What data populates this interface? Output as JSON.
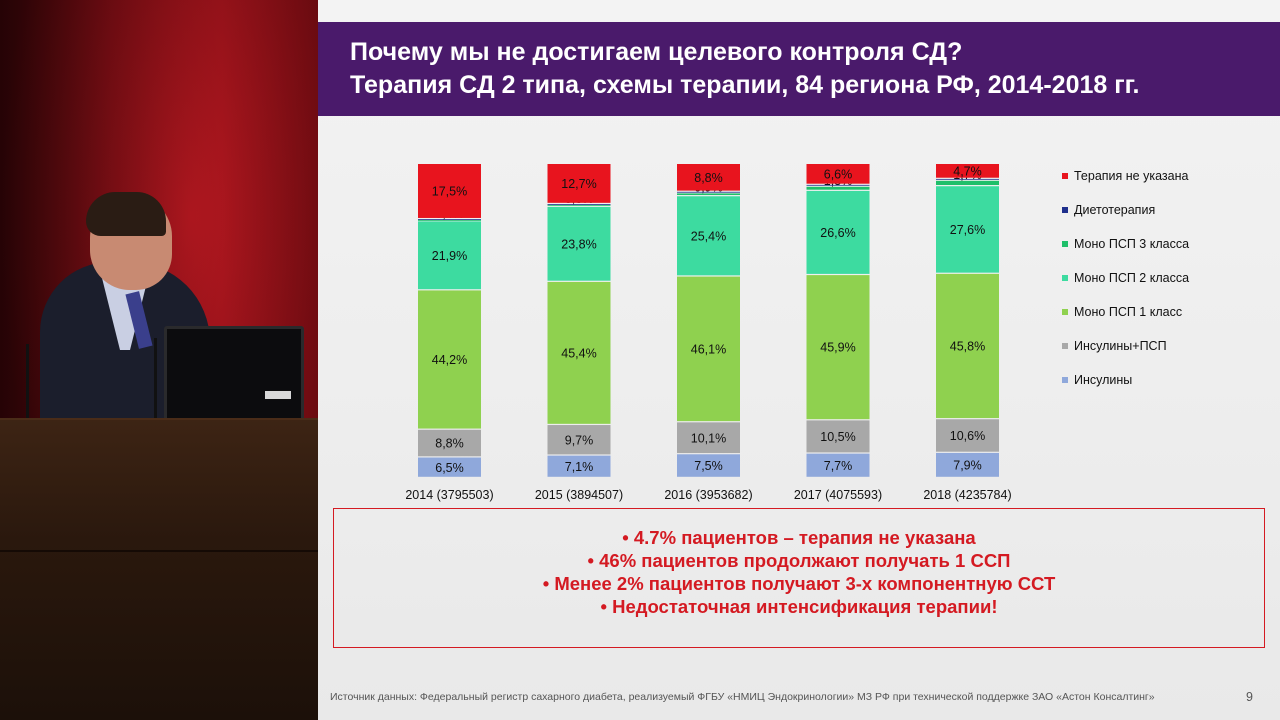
{
  "title": {
    "line1": "Почему мы не достигаем целевого контроля СД?",
    "line2": "Терапия СД 2 типа, схемы терапии, 84 региона РФ, 2014-2018 гг."
  },
  "chart_data": {
    "type": "bar",
    "stacked": true,
    "normalized_percent": true,
    "categories": [
      "2014 (3795503)",
      "2015 (3894507)",
      "2016 (3953682)",
      "2017 (4075593)",
      "2018 (4235784)"
    ],
    "series": [
      {
        "name": "Инсулины",
        "color": "#8fa8db",
        "values": [
          6.5,
          7.1,
          7.5,
          7.7,
          7.9
        ],
        "labels": [
          "6,5%",
          "7,1%",
          "7,5%",
          "7,7%",
          "7,9%"
        ]
      },
      {
        "name": "Инсулины+ПСП",
        "color": "#a8a8a8",
        "values": [
          8.8,
          9.7,
          10.1,
          10.5,
          10.6
        ],
        "labels": [
          "8,8%",
          "9,7%",
          "10,1%",
          "10,5%",
          "10,6%"
        ]
      },
      {
        "name": "Моно ПСП 1 класс",
        "color": "#8fd14f",
        "values": [
          44.2,
          45.4,
          46.1,
          45.9,
          45.8
        ],
        "labels": [
          "44,2%",
          "45,4%",
          "46,1%",
          "45,9%",
          "45,8%"
        ]
      },
      {
        "name": "Моно ПСП 2 класса",
        "color": "#3ddba0",
        "values": [
          21.9,
          23.8,
          25.4,
          26.6,
          27.6
        ],
        "labels": [
          "21,9%",
          "23,8%",
          "25,4%",
          "26,6%",
          "27,6%"
        ]
      },
      {
        "name": "Моно ПСП 3 класса",
        "color": "#1fbf6a",
        "values": [
          0.4,
          0.6,
          0.9,
          1.3,
          1.7
        ],
        "labels": [
          "0,4%",
          "0,6%",
          "0,9%",
          "1,3%",
          "1,7%"
        ]
      },
      {
        "name": "Диетотерапия",
        "color": "#1f2f8c",
        "values": [
          0.3,
          0.3,
          0.5,
          0.6,
          0.6
        ],
        "labels": [
          "",
          "",
          "",
          "",
          ""
        ]
      },
      {
        "name": "Терапия не указана",
        "color": "#e8141e",
        "values": [
          17.5,
          12.7,
          8.8,
          6.6,
          4.7
        ],
        "labels": [
          "17,5%",
          "12,7%",
          "8,8%",
          "6,6%",
          "4,7%"
        ]
      }
    ],
    "legend": {
      "position": "right",
      "order": [
        "Терапия не указана",
        "Диетотерапия",
        "Моно ПСП 3 класса",
        "Моно ПСП 2 класса",
        "Моно ПСП 1 класс",
        "Инсулины+ПСП",
        "Инсулины"
      ]
    },
    "grid": false
  },
  "bullets": [
    "•  4.7% пациентов – терапия не указана",
    "•  46% пациентов продолжают получать 1 ССП",
    "•  Менее 2% пациентов получают 3-х компонентную ССТ",
    "•  Недостаточная интенсификация терапии!"
  ],
  "footer": "Источник данных: Федеральный регистр сахарного диабета, реализуемый ФГБУ «НМИЦ Эндокринологии» МЗ РФ при технической поддержке ЗАО «Астон Консалтинг»",
  "page_number": "9",
  "colors": {
    "title_band": "#4a1a6b",
    "accent_red": "#d41a22",
    "backdrop_red": "#a5101a"
  }
}
